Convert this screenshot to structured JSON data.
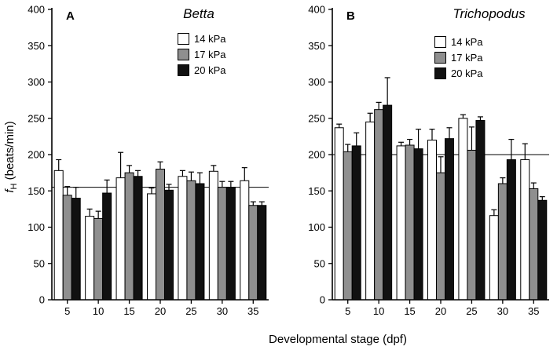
{
  "figure": {
    "xlabel": "Developmental stage (dpf)",
    "ylabel_f": "f",
    "ylabel_sub": "H",
    "ylabel_rest": " (beats/min)"
  },
  "chart_data": [
    {
      "type": "bar",
      "panel_letter": "A",
      "title": "Betta",
      "xlabel": "Developmental stage (dpf)",
      "ylabel": "fH (beats/min)",
      "categories": [
        "5",
        "10",
        "15",
        "20",
        "25",
        "30",
        "35"
      ],
      "ylim": [
        0,
        400
      ],
      "yticks": [
        0,
        50,
        100,
        150,
        200,
        250,
        300,
        350,
        400
      ],
      "reference_line": 155,
      "legend_position": "upper center",
      "grid": false,
      "series": [
        {
          "name": "14 kPa",
          "color": "#ffffff",
          "values": [
            178,
            115,
            168,
            146,
            170,
            177,
            164
          ],
          "errors": [
            15,
            10,
            35,
            8,
            8,
            8,
            18
          ]
        },
        {
          "name": "17 kPa",
          "color": "#8f8f8f",
          "values": [
            144,
            112,
            175,
            180,
            164,
            155,
            130
          ],
          "errors": [
            12,
            10,
            10,
            10,
            12,
            8,
            5
          ]
        },
        {
          "name": "20 kPa",
          "color": "#111111",
          "values": [
            140,
            147,
            170,
            151,
            160,
            155,
            130
          ],
          "errors": [
            15,
            18,
            8,
            8,
            15,
            8,
            5
          ]
        }
      ]
    },
    {
      "type": "bar",
      "panel_letter": "B",
      "title": "Trichopodus",
      "xlabel": "Developmental stage (dpf)",
      "ylabel": "fH (beats/min)",
      "categories": [
        "5",
        "10",
        "15",
        "20",
        "25",
        "30",
        "35"
      ],
      "ylim": [
        0,
        400
      ],
      "yticks": [
        0,
        50,
        100,
        150,
        200,
        250,
        300,
        350,
        400
      ],
      "reference_line": 200,
      "legend_position": "upper center",
      "grid": false,
      "series": [
        {
          "name": "14 kPa",
          "color": "#ffffff",
          "values": [
            237,
            245,
            212,
            220,
            250,
            116,
            193
          ],
          "errors": [
            5,
            12,
            5,
            15,
            5,
            8,
            22
          ]
        },
        {
          "name": "17 kPa",
          "color": "#8f8f8f",
          "values": [
            204,
            262,
            213,
            175,
            206,
            160,
            153
          ],
          "errors": [
            10,
            10,
            8,
            22,
            32,
            8,
            8
          ]
        },
        {
          "name": "20 kPa",
          "color": "#111111",
          "values": [
            212,
            268,
            208,
            222,
            247,
            193,
            137
          ],
          "errors": [
            18,
            38,
            27,
            15,
            5,
            28,
            5
          ]
        }
      ]
    }
  ]
}
